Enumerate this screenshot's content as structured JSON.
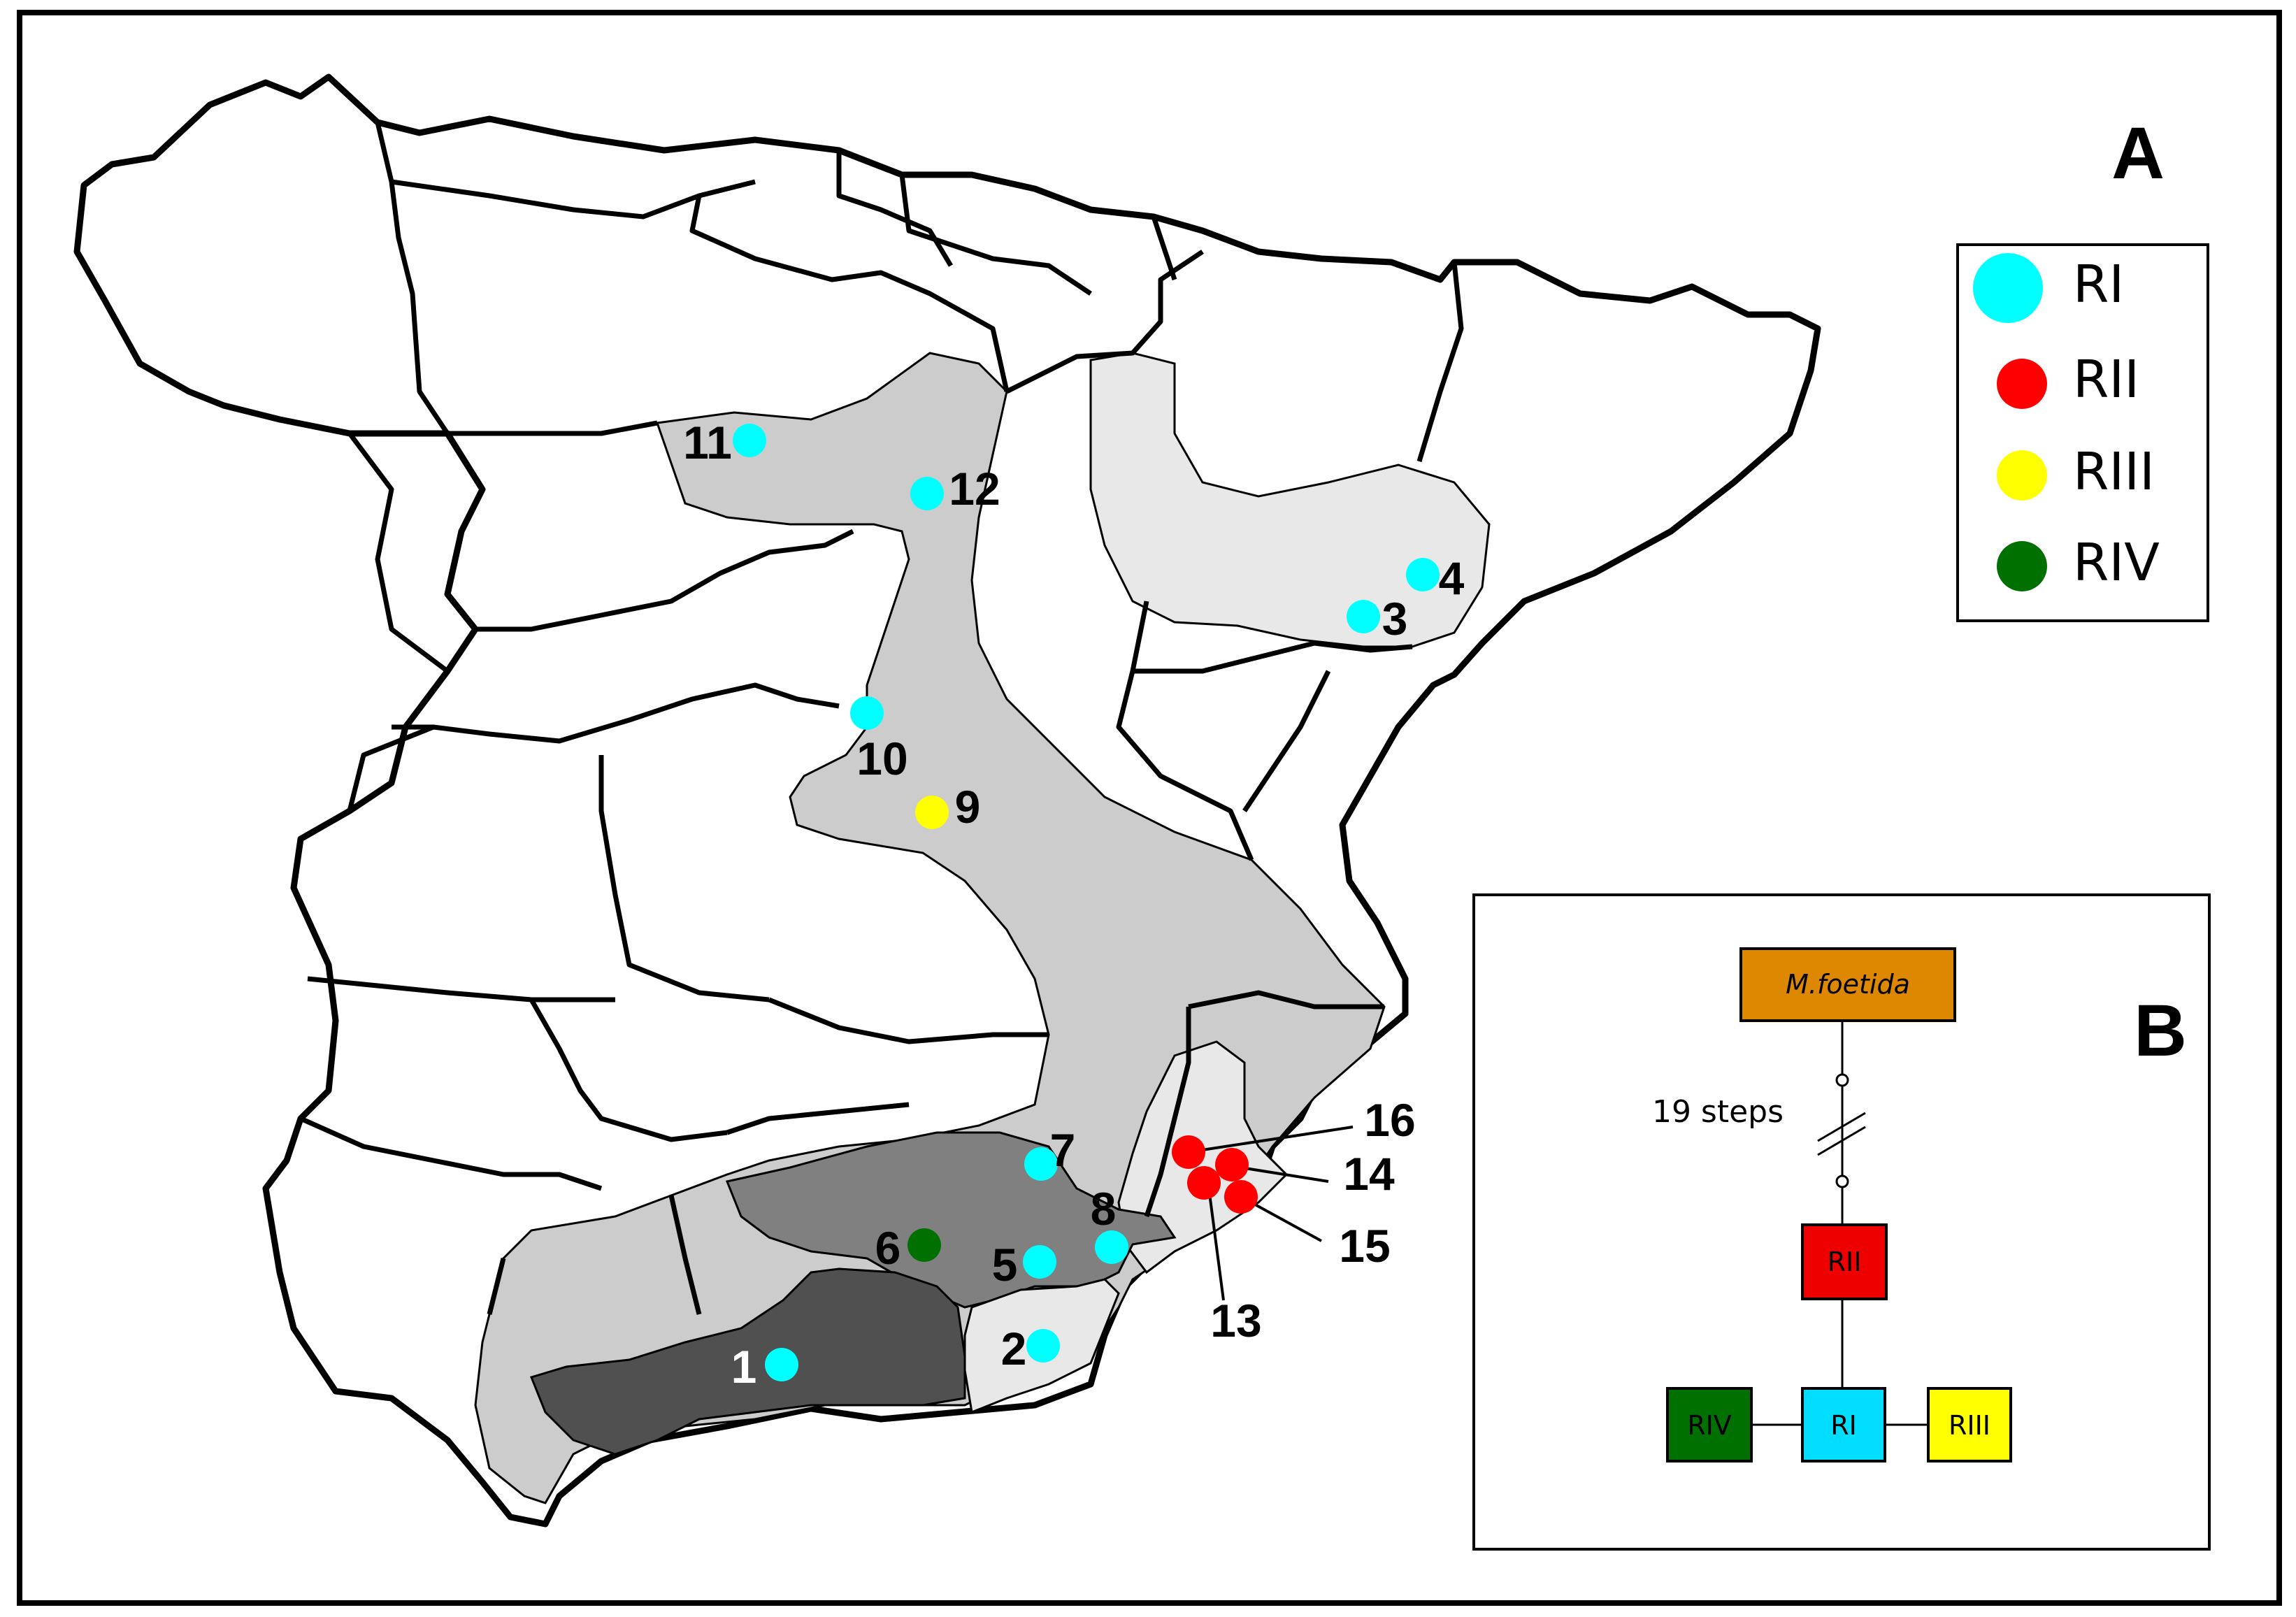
{
  "panels": {
    "a_letter": "A",
    "b_letter": "B"
  },
  "legend": [
    {
      "label": "RI",
      "color": "#00FFFF"
    },
    {
      "label": "RII",
      "color": "#FF0000"
    },
    {
      "label": "RIII",
      "color": "#FFFF00"
    },
    {
      "label": "RIV",
      "color": "#007000"
    }
  ],
  "sites": [
    {
      "label": "1",
      "group": "RI",
      "label_color": "#FFFFFF"
    },
    {
      "label": "2",
      "group": "RI",
      "label_color": "#000000"
    },
    {
      "label": "3",
      "group": "RI",
      "label_color": "#000000"
    },
    {
      "label": "4",
      "group": "RI",
      "label_color": "#000000"
    },
    {
      "label": "5",
      "group": "RI",
      "label_color": "#000000"
    },
    {
      "label": "6",
      "group": "RIV",
      "label_color": "#000000"
    },
    {
      "label": "7",
      "group": "RI",
      "label_color": "#000000"
    },
    {
      "label": "8",
      "group": "RI",
      "label_color": "#000000"
    },
    {
      "label": "9",
      "group": "RIII",
      "label_color": "#000000"
    },
    {
      "label": "10",
      "group": "RI",
      "label_color": "#000000"
    },
    {
      "label": "11",
      "group": "RI",
      "label_color": "#000000"
    },
    {
      "label": "12",
      "group": "RI",
      "label_color": "#000000"
    },
    {
      "label": "13",
      "group": "RII",
      "label_color": "#000000"
    },
    {
      "label": "14",
      "group": "RII",
      "label_color": "#000000"
    },
    {
      "label": "15",
      "group": "RII",
      "label_color": "#000000"
    },
    {
      "label": "16",
      "group": "RII",
      "label_color": "#000000"
    }
  ],
  "network": {
    "outgroup": "M.foetida",
    "steps_label": "19 steps",
    "nodes": [
      {
        "label": "RII",
        "color": "#EE0000"
      },
      {
        "label": "RI",
        "color": "#00DDFF"
      },
      {
        "label": "RIV",
        "color": "#007000"
      },
      {
        "label": "RIII",
        "color": "#FFFF00"
      }
    ],
    "outgroup_color": "#DD8800"
  },
  "colors": {
    "light_zone": "#E8E8E8",
    "mid_zone": "#CCCCCC",
    "dark_zone": "#808080",
    "darkest_zone": "#505050",
    "border": "#000000"
  }
}
